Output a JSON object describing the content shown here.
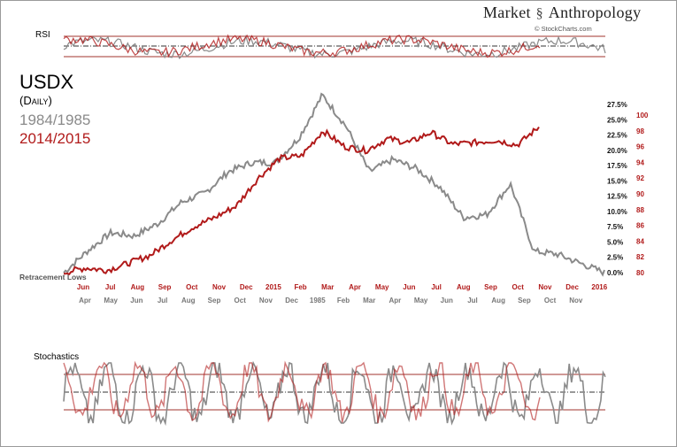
{
  "header": {
    "brand_left": "Market",
    "brand_right": "Anthropology",
    "brand_icon": "dna-helix-icon",
    "credit": "© StockCharts.com"
  },
  "panels": {
    "rsi_label": "RSI",
    "stoch_label": "Stochastics"
  },
  "colors": {
    "series_1984": "#8a8a8a",
    "series_2014": "#b11a1a",
    "band_lines": "#a0332d",
    "mid_lines": "#333333"
  },
  "chart_data": {
    "type": "line",
    "title": "USDX",
    "subtitle": "(Daily)",
    "annotation": "Retracement Lows",
    "series": [
      {
        "name": "1984/1985",
        "axis": "left",
        "color": "#8a8a8a",
        "x_labels": [
          "Apr",
          "May",
          "Jun",
          "Jul",
          "Aug",
          "Sep",
          "Oct",
          "Nov",
          "Dec",
          "1985",
          "Feb",
          "Mar",
          "Apr",
          "May",
          "Jun",
          "Jul",
          "Aug",
          "Sep",
          "Oct",
          "Nov"
        ],
        "values": [
          0.0,
          3.5,
          6.5,
          6.0,
          8.0,
          11.5,
          13.0,
          16.5,
          18.0,
          18.0,
          22.0,
          29.0,
          24.0,
          16.5,
          18.5,
          17.0,
          14.0,
          9.0,
          9.5,
          14.5,
          3.5,
          3.0,
          1.5,
          0.0
        ]
      },
      {
        "name": "2014/2015",
        "axis": "right",
        "color": "#b11a1a",
        "x_labels": [
          "Jun",
          "Jul",
          "Aug",
          "Sep",
          "Oct",
          "Nov",
          "Dec",
          "2015",
          "Feb",
          "Mar",
          "Apr",
          "May",
          "Jun",
          "Jul",
          "Aug",
          "Sep",
          "Oct",
          "Nov",
          "Dec",
          "2016"
        ],
        "values": [
          80.0,
          80.6,
          80.3,
          81.2,
          82.2,
          84.1,
          85.8,
          87.0,
          88.5,
          92.0,
          94.5,
          94.8,
          98.0,
          96.0,
          95.5,
          97.0,
          96.5,
          97.8,
          96.3,
          96.5,
          96.8,
          96.2,
          98.5
        ]
      }
    ],
    "y_left": {
      "ticks": [
        "0.0%",
        "2.5%",
        "5.0%",
        "7.5%",
        "10.0%",
        "12.5%",
        "15.0%",
        "17.5%",
        "20.0%",
        "22.5%",
        "25.0%",
        "27.5%"
      ],
      "range": [
        0,
        27.5
      ]
    },
    "y_right": {
      "ticks": [
        "80",
        "82",
        "84",
        "86",
        "88",
        "90",
        "92",
        "94",
        "96",
        "98",
        "100"
      ],
      "range": [
        80,
        100
      ]
    },
    "x_top_labels": [
      "Jun",
      "Jul",
      "Aug",
      "Sep",
      "Oct",
      "Nov",
      "Dec",
      "2015",
      "Feb",
      "Mar",
      "Apr",
      "May",
      "Jun",
      "Jul",
      "Aug",
      "Sep",
      "Oct",
      "Nov",
      "Dec",
      "2016"
    ],
    "x_bottom_labels": [
      "Apr",
      "May",
      "Jun",
      "Jul",
      "Aug",
      "Sep",
      "Oct",
      "Nov",
      "Dec",
      "1985",
      "Feb",
      "Mar",
      "Apr",
      "May",
      "Jun",
      "Jul",
      "Aug",
      "Sep",
      "Oct",
      "Nov"
    ]
  }
}
